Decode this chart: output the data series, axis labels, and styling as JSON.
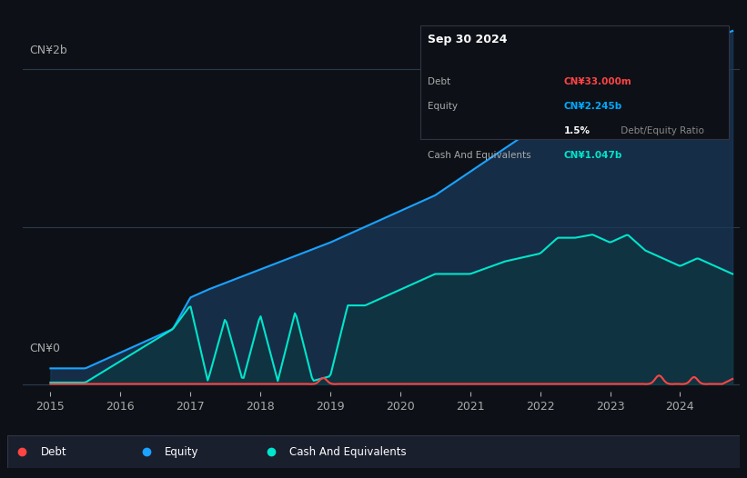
{
  "bg_color": "#0d1117",
  "plot_bg_color": "#0d1117",
  "grid_color": "#1e2a3a",
  "title_box": {
    "date": "Sep 30 2024",
    "rows": [
      {
        "label": "Debt",
        "value": "CN¥33.000m",
        "value_color": "#ff4444"
      },
      {
        "label": "Equity",
        "value": "CN¥2.245b",
        "value_color": "#00aaff"
      },
      {
        "label": "",
        "value": "1.5%",
        "value_color": "#ffffff",
        "suffix": " Debt/Equity Ratio",
        "suffix_color": "#aaaaaa"
      },
      {
        "label": "Cash And Equivalents",
        "value": "CN¥1.047b",
        "value_color": "#00e5cc"
      }
    ]
  },
  "ylabel_top": "CN¥2b",
  "ylabel_bottom": "CN¥0",
  "x_ticks": [
    2015,
    2016,
    2017,
    2018,
    2019,
    2020,
    2021,
    2022,
    2023,
    2024
  ],
  "equity_color": "#1aa3ff",
  "equity_fill": "#1a3a5c",
  "debt_color": "#ff4444",
  "cash_color": "#00e5cc",
  "cash_fill": "#0a3a3a",
  "legend": [
    {
      "label": "Debt",
      "color": "#ff4444"
    },
    {
      "label": "Equity",
      "color": "#1aa3ff"
    },
    {
      "label": "Cash And Equivalents",
      "color": "#00e5cc"
    }
  ]
}
